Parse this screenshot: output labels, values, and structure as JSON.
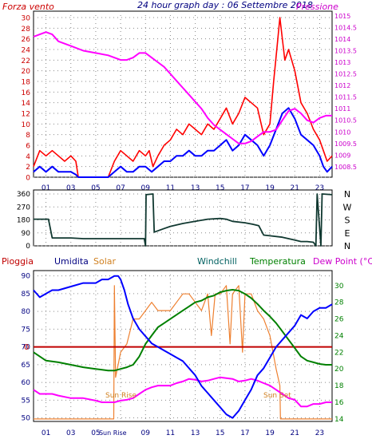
{
  "title": "24 hour graph day : 06 Settembre 2018",
  "colors": {
    "wind_speed": "#ff0000",
    "wind_avg": "#0000ff",
    "pressure": "#ff00ff",
    "direction": "#103830",
    "rain": "#c00000",
    "humidity": "#0000ff",
    "solar": "#ee8030",
    "windchill": "#006060",
    "temperature": "#008000",
    "dewpoint": "#ff00ff",
    "axis_red": "#cc0000",
    "axis_blue": "#000080",
    "axis_magenta": "#cc00cc",
    "axis_dark": "#000000"
  },
  "chart_data": [
    {
      "type": "line",
      "id": "wind",
      "left_label": "Forza vento",
      "right_label": "Pressione",
      "left_ticks": [
        "0",
        "2",
        "4",
        "6",
        "8",
        "10",
        "12",
        "14",
        "16",
        "18",
        "20",
        "22",
        "24",
        "26",
        "28",
        "30"
      ],
      "right_ticks": [
        "1008.5",
        "1009",
        "1009.5",
        "1010",
        "1010.5",
        "1011",
        "1011.5",
        "1012",
        "1012.5",
        "1013",
        "1013.5",
        "1014",
        "1014.5",
        "1015"
      ],
      "x_ticks": [
        "01",
        "03",
        "05",
        "07",
        "09",
        "11",
        "13",
        "15",
        "17",
        "19",
        "21",
        "23"
      ],
      "ylim": [
        0,
        31.2
      ],
      "pressure_ylim": [
        1008.05,
        1015.2
      ],
      "xlim": [
        0,
        24
      ],
      "series": [
        {
          "key": "gust",
          "x": [
            0,
            0.5,
            1,
            1.5,
            2,
            2.5,
            3,
            3.4,
            3.6,
            4,
            5,
            6,
            6.5,
            7,
            7.5,
            8,
            8.5,
            9,
            9.3,
            9.6,
            10,
            10.5,
            11,
            11.5,
            12,
            12.5,
            13,
            13.5,
            14,
            14.5,
            15,
            15.5,
            16,
            16.5,
            17,
            17.5,
            18,
            18.5,
            19,
            19.3,
            19.6,
            19.8,
            20,
            20.2,
            20.5,
            21,
            21.5,
            22,
            22.5,
            23,
            23.3,
            23.6,
            24
          ],
          "y": [
            2,
            5,
            4,
            5,
            4,
            3,
            4,
            3,
            0,
            0,
            0,
            0,
            3,
            5,
            4,
            3,
            5,
            4,
            5,
            2,
            4,
            6,
            7,
            9,
            8,
            10,
            9,
            8,
            10,
            9,
            11,
            13,
            10,
            12,
            15,
            14,
            13,
            8,
            10,
            18,
            25,
            30,
            26,
            22,
            24,
            20,
            14,
            12,
            9,
            7,
            5,
            3,
            4
          ]
        },
        {
          "key": "average",
          "x": [
            0,
            0.5,
            1,
            1.5,
            2,
            2.5,
            3,
            3.4,
            3.6,
            4,
            5,
            6,
            6.5,
            7,
            7.5,
            8,
            8.5,
            9,
            9.5,
            10,
            10.5,
            11,
            11.5,
            12,
            12.5,
            13,
            13.5,
            14,
            14.5,
            15,
            15.5,
            16,
            16.5,
            17,
            17.5,
            18,
            18.5,
            19,
            19.5,
            20,
            20.5,
            21,
            21.5,
            22,
            22.5,
            23,
            23.3,
            23.6,
            24
          ],
          "y": [
            1,
            2,
            1,
            2,
            1,
            1,
            1,
            0.5,
            0,
            0,
            0,
            0,
            1,
            2,
            1,
            1,
            2,
            2,
            1,
            2,
            3,
            3,
            4,
            4,
            5,
            4,
            4,
            5,
            5,
            6,
            7,
            5,
            6,
            8,
            7,
            6,
            4,
            6,
            9,
            12,
            13,
            11,
            8,
            7,
            6,
            4,
            2,
            1,
            2
          ]
        },
        {
          "key": "pressure",
          "x": [
            0,
            0.5,
            1,
            1.5,
            2,
            3,
            4,
            5,
            6,
            6.5,
            7,
            7.5,
            8,
            8.5,
            9,
            9.5,
            10,
            10.5,
            11,
            11.5,
            12,
            12.5,
            13,
            13.5,
            14,
            14.5,
            15,
            15.5,
            16,
            16.5,
            17,
            17.5,
            18,
            18.5,
            19,
            19.5,
            20,
            20.5,
            21,
            21.5,
            22,
            22.5,
            23,
            23.5,
            24
          ],
          "y": [
            1014.1,
            1014.2,
            1014.3,
            1014.2,
            1013.9,
            1013.7,
            1013.5,
            1013.4,
            1013.3,
            1013.2,
            1013.1,
            1013.1,
            1013.2,
            1013.4,
            1013.4,
            1013.2,
            1013.0,
            1012.8,
            1012.5,
            1012.2,
            1011.9,
            1011.6,
            1011.3,
            1011.0,
            1010.6,
            1010.3,
            1010.1,
            1009.9,
            1009.7,
            1009.5,
            1009.5,
            1009.6,
            1009.8,
            1010.0,
            1010.0,
            1010.1,
            1010.5,
            1010.9,
            1011.0,
            1010.8,
            1010.5,
            1010.4,
            1010.6,
            1010.7,
            1010.7
          ]
        }
      ]
    },
    {
      "type": "line",
      "id": "direction",
      "left_ticks": [
        "0",
        "90",
        "180",
        "270",
        "360"
      ],
      "right_ticks": [
        "N",
        "W",
        "S",
        "E",
        "N"
      ],
      "ylim": [
        0,
        360
      ],
      "xlim": [
        0,
        24
      ],
      "series": [
        {
          "key": "direction",
          "x": [
            0,
            0.1,
            1,
            1.2,
            1.5,
            2,
            3,
            4,
            5,
            6,
            7,
            8,
            8.9,
            9.0,
            9.05,
            9.6,
            9.7,
            10.5,
            11,
            12,
            13,
            14,
            15,
            15.5,
            16,
            17,
            17.6,
            18.1,
            18.5,
            19,
            20,
            21,
            21.5,
            22,
            22.5,
            22.7,
            22.8,
            23.1,
            23.2,
            24
          ],
          "y": [
            185,
            185,
            185,
            185,
            55,
            55,
            55,
            50,
            50,
            50,
            50,
            50,
            50,
            0,
            355,
            360,
            95,
            120,
            135,
            155,
            170,
            185,
            190,
            185,
            170,
            160,
            150,
            140,
            75,
            70,
            60,
            40,
            30,
            30,
            25,
            0,
            360,
            0,
            360,
            355
          ]
        }
      ]
    },
    {
      "type": "line",
      "id": "atmospheric",
      "legend": [
        "Pioggia",
        "Umidita",
        "Solar",
        "Windchill",
        "Temperatura",
        "Dew Point (°C)"
      ],
      "left_ticks": [
        "50",
        "55",
        "60",
        "65",
        "70",
        "75",
        "80",
        "85",
        "90"
      ],
      "right_ticks": [
        "14",
        "16",
        "18",
        "20",
        "22",
        "24",
        "26",
        "28",
        "30"
      ],
      "rain_marker": "0",
      "x_ticks": [
        "01",
        "03",
        "05",
        "07",
        "09",
        "11",
        "13",
        "15",
        "17",
        "19",
        "21",
        "23"
      ],
      "sun_rise_tick": "Sun Rise",
      "sun_rise_label": "Sun Rise",
      "sun_set_label": "Sun Set",
      "ylim": [
        49,
        91.5
      ],
      "temp_ylim": [
        13.7,
        31.8
      ],
      "xlim": [
        0,
        24
      ],
      "sun_rise_x": 6.5,
      "sun_set_x": 19.8,
      "series": [
        {
          "key": "humidity",
          "x": [
            0,
            0.5,
            1,
            1.5,
            2,
            3,
            4,
            5,
            5.5,
            6,
            6.5,
            6.8,
            7,
            7.3,
            7.6,
            8,
            8.5,
            9,
            9.5,
            10,
            10.5,
            11,
            11.5,
            12,
            12.5,
            13,
            13.5,
            14,
            14.5,
            15,
            15.5,
            16,
            16.5,
            17,
            17.5,
            18,
            18.5,
            19,
            19.5,
            20,
            20.5,
            21,
            21.5,
            22,
            22.5,
            23,
            23.5,
            24
          ],
          "y": [
            86,
            84,
            85,
            86,
            86,
            87,
            88,
            88,
            89,
            89,
            90,
            90,
            89,
            86,
            82,
            78,
            75,
            73,
            71,
            70,
            69,
            68,
            67,
            66,
            64,
            62,
            59,
            57,
            55,
            53,
            51,
            50,
            52,
            55,
            58,
            62,
            64,
            67,
            70,
            72,
            74,
            76,
            79,
            78,
            80,
            81,
            81,
            82
          ]
        },
        {
          "key": "solar",
          "x": [
            0,
            6.45,
            6.5,
            6.6,
            7,
            7.5,
            8,
            8.5,
            9,
            9.5,
            10,
            10.5,
            11,
            11.5,
            12,
            12.5,
            13,
            13.5,
            14,
            14.3,
            14.6,
            15,
            15.5,
            15.8,
            16,
            16.5,
            16.8,
            17,
            17.5,
            18,
            18.5,
            19,
            19.5,
            19.8,
            19.85,
            24
          ],
          "y": [
            14,
            14,
            30,
            19,
            22,
            23,
            26,
            26,
            27,
            28,
            27,
            27,
            27,
            28,
            29,
            29,
            28,
            27,
            29,
            24,
            29,
            29,
            30,
            23,
            29,
            30,
            22,
            29,
            29,
            27,
            26,
            24,
            20,
            18,
            14,
            14
          ]
        },
        {
          "key": "temperature",
          "x": [
            0,
            0.5,
            1,
            2,
            3,
            4,
            5,
            6,
            6.5,
            7,
            7.5,
            8,
            8.5,
            9,
            9.5,
            10,
            10.5,
            11,
            11.5,
            12,
            12.5,
            13,
            13.5,
            14,
            14.5,
            15,
            15.5,
            16,
            16.5,
            17,
            17.5,
            18,
            18.5,
            19,
            19.5,
            20,
            20.5,
            21,
            21.5,
            22,
            22.5,
            23,
            23.5,
            24
          ],
          "y": [
            22,
            21.5,
            21,
            20.8,
            20.5,
            20.2,
            20,
            19.8,
            19.8,
            20,
            20.2,
            20.5,
            21.5,
            23,
            24,
            25,
            25.5,
            26,
            26.5,
            27,
            27.5,
            28,
            28.2,
            28.6,
            28.8,
            29.2,
            29.4,
            29.5,
            29.4,
            29,
            28.5,
            27.8,
            27,
            26.3,
            25.5,
            24.5,
            23.5,
            22.5,
            21.5,
            21,
            20.8,
            20.6,
            20.5,
            20.5
          ]
        },
        {
          "key": "dewpoint",
          "x": [
            0,
            0.5,
            1,
            1.5,
            2,
            3,
            4,
            5,
            5.5,
            6,
            6.5,
            7,
            7.5,
            8,
            8.5,
            9,
            9.5,
            10,
            10.5,
            11,
            11.5,
            12,
            12.5,
            13,
            13.5,
            14,
            14.5,
            15,
            15.5,
            16,
            16.5,
            17,
            17.5,
            18,
            18.5,
            19,
            19.5,
            20,
            20.5,
            21,
            21.5,
            22,
            22.5,
            23,
            23.5,
            24
          ],
          "y": [
            17.5,
            17,
            17,
            17,
            16.8,
            16.5,
            16.5,
            16.2,
            16,
            16,
            16,
            16.2,
            16.3,
            16.5,
            17,
            17.5,
            17.8,
            18,
            18,
            18,
            18.3,
            18.5,
            18.8,
            18.7,
            18.5,
            18.6,
            18.8,
            19,
            18.9,
            18.8,
            18.5,
            18.6,
            18.8,
            18.6,
            18.3,
            18,
            17.5,
            17,
            16.5,
            16.3,
            15.5,
            15.5,
            15.8,
            15.8,
            16,
            16
          ]
        },
        {
          "key": "rain",
          "x": [
            0,
            24
          ],
          "y": [
            70,
            70
          ]
        }
      ]
    }
  ]
}
